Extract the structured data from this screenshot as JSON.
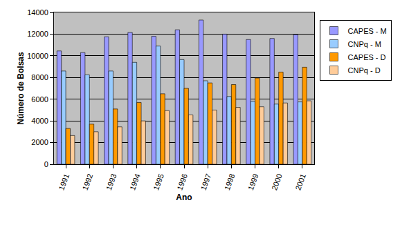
{
  "chart_data": {
    "type": "bar",
    "x_label": "Ano",
    "y_label": "Número de Bolsas",
    "categories": [
      "1991",
      "1992",
      "1993",
      "1994",
      "1995",
      "1996",
      "1997",
      "1998",
      "1999",
      "2000",
      "2001"
    ],
    "series": [
      {
        "name": "CAPES - M",
        "color": "#9999ff",
        "values": [
          10450,
          10300,
          11750,
          12150,
          11800,
          12400,
          13300,
          12000,
          11500,
          11600,
          11950
        ]
      },
      {
        "name": "CNPq - M",
        "color": "#99ccff",
        "values": [
          8600,
          8250,
          8600,
          9400,
          10900,
          9650,
          7700,
          6250,
          5800,
          5550,
          5750
        ]
      },
      {
        "name": "CAPES - D",
        "color": "#ff9900",
        "values": [
          3300,
          3700,
          5100,
          5700,
          6500,
          7000,
          7500,
          7350,
          7950,
          8500,
          8950
        ]
      },
      {
        "name": "CNPq - D",
        "color": "#ffcc99",
        "values": [
          2650,
          3000,
          3450,
          4000,
          4950,
          4550,
          5000,
          5250,
          5300,
          5650,
          5850
        ]
      }
    ],
    "ylim": [
      0,
      14000
    ],
    "yticks": [
      0,
      2000,
      4000,
      6000,
      8000,
      10000,
      12000,
      14000
    ],
    "grid": true,
    "legend": "right"
  }
}
